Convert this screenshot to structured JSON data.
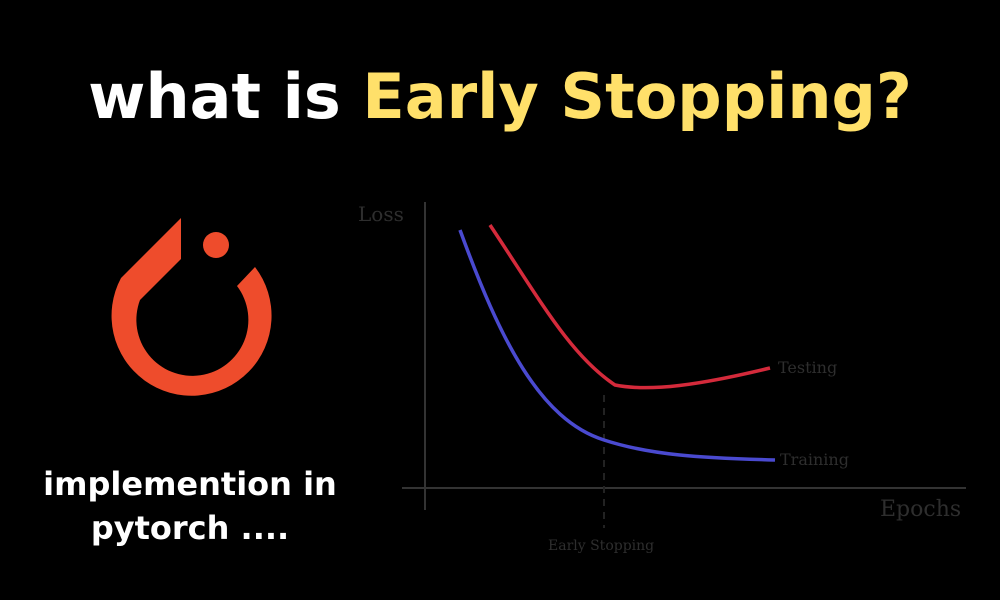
{
  "title": {
    "part1": "what is",
    "part2": "Early Stopping?"
  },
  "subtitle": {
    "line1": "implemention in",
    "line2": "pytorch ...."
  },
  "logo": {
    "icon": "pytorch-logo-icon",
    "color": "#ee4c2c"
  },
  "chart_data": {
    "type": "line",
    "xlabel": "Epochs",
    "ylabel": "Loss",
    "series": [
      {
        "name": "Testing",
        "color": "#d42a3b"
      },
      {
        "name": "Training",
        "color": "#4a4ad0"
      }
    ],
    "annotations": [
      {
        "label": "Early Stopping",
        "style": "dashed-vertical-line"
      }
    ]
  }
}
